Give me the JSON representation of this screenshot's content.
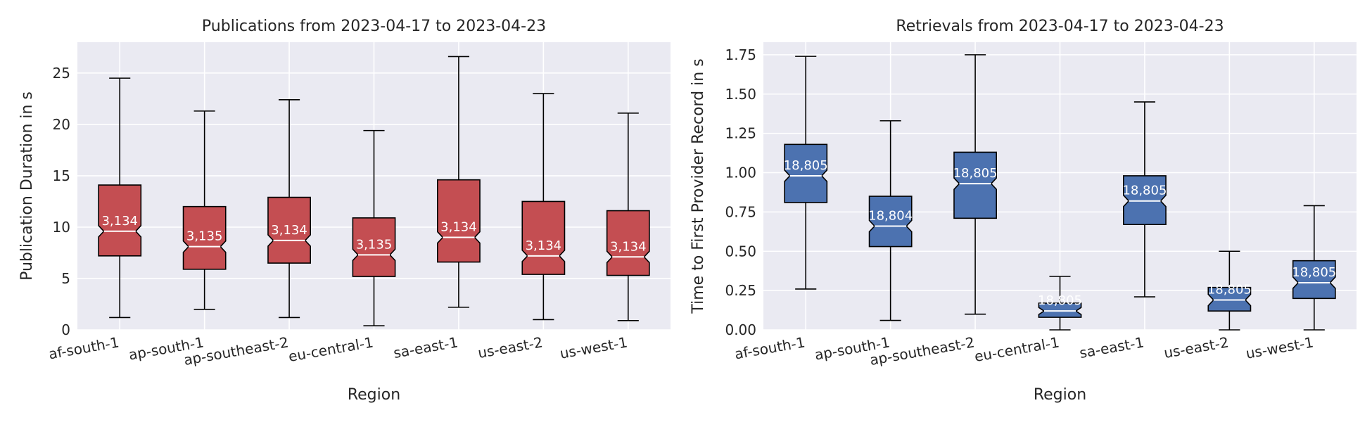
{
  "chart_data": [
    {
      "type": "boxplot",
      "title": "Publications from 2023-04-17 to 2023-04-23",
      "xlabel": "Region",
      "ylabel": "Publication Duration in s",
      "ylim": [
        0,
        28
      ],
      "yticks": [
        0,
        5,
        10,
        15,
        20,
        25
      ],
      "color": "#c44e52",
      "median_color": "#ffffff",
      "notched": true,
      "grid": true,
      "categories": [
        "af-south-1",
        "ap-south-1",
        "ap-southeast-2",
        "eu-central-1",
        "sa-east-1",
        "us-east-2",
        "us-west-1"
      ],
      "boxes": [
        {
          "whisker_low": 1.2,
          "q1": 7.2,
          "median": 9.6,
          "q3": 14.1,
          "whisker_high": 24.5,
          "count": "3,134"
        },
        {
          "whisker_low": 2.0,
          "q1": 5.9,
          "median": 8.1,
          "q3": 12.0,
          "whisker_high": 21.3,
          "count": "3,135"
        },
        {
          "whisker_low": 1.2,
          "q1": 6.5,
          "median": 8.7,
          "q3": 12.9,
          "whisker_high": 22.4,
          "count": "3,134"
        },
        {
          "whisker_low": 0.4,
          "q1": 5.2,
          "median": 7.3,
          "q3": 10.9,
          "whisker_high": 19.4,
          "count": "3,135"
        },
        {
          "whisker_low": 2.2,
          "q1": 6.6,
          "median": 9.0,
          "q3": 14.6,
          "whisker_high": 26.6,
          "count": "3,134"
        },
        {
          "whisker_low": 1.0,
          "q1": 5.4,
          "median": 7.2,
          "q3": 12.5,
          "whisker_high": 23.0,
          "count": "3,134"
        },
        {
          "whisker_low": 0.9,
          "q1": 5.3,
          "median": 7.1,
          "q3": 11.6,
          "whisker_high": 21.1,
          "count": "3,134"
        }
      ]
    },
    {
      "type": "boxplot",
      "title": "Retrievals from 2023-04-17 to 2023-04-23",
      "xlabel": "Region",
      "ylabel": "Time to First Provider Record in s",
      "ylim": [
        0,
        1.83
      ],
      "yticks": [
        0.0,
        0.25,
        0.5,
        0.75,
        1.0,
        1.25,
        1.5,
        1.75
      ],
      "ytick_labels": [
        "0.00",
        "0.25",
        "0.50",
        "0.75",
        "1.00",
        "1.25",
        "1.50",
        "1.75"
      ],
      "color": "#4c72b0",
      "median_color": "#ffffff",
      "notched": true,
      "grid": true,
      "categories": [
        "af-south-1",
        "ap-south-1",
        "ap-southeast-2",
        "eu-central-1",
        "sa-east-1",
        "us-east-2",
        "us-west-1"
      ],
      "boxes": [
        {
          "whisker_low": 0.26,
          "q1": 0.81,
          "median": 0.98,
          "q3": 1.18,
          "whisker_high": 1.74,
          "count": "18,805"
        },
        {
          "whisker_low": 0.06,
          "q1": 0.53,
          "median": 0.66,
          "q3": 0.85,
          "whisker_high": 1.33,
          "count": "18,804"
        },
        {
          "whisker_low": 0.1,
          "q1": 0.71,
          "median": 0.93,
          "q3": 1.13,
          "whisker_high": 1.75,
          "count": "18,805"
        },
        {
          "whisker_low": 0.0,
          "q1": 0.08,
          "median": 0.12,
          "q3": 0.17,
          "whisker_high": 0.34,
          "count": "18,805"
        },
        {
          "whisker_low": 0.21,
          "q1": 0.67,
          "median": 0.82,
          "q3": 0.98,
          "whisker_high": 1.45,
          "count": "18,805"
        },
        {
          "whisker_low": 0.0,
          "q1": 0.12,
          "median": 0.19,
          "q3": 0.27,
          "whisker_high": 0.5,
          "count": "18,805"
        },
        {
          "whisker_low": 0.0,
          "q1": 0.2,
          "median": 0.3,
          "q3": 0.44,
          "whisker_high": 0.79,
          "count": "18,805"
        }
      ]
    }
  ]
}
